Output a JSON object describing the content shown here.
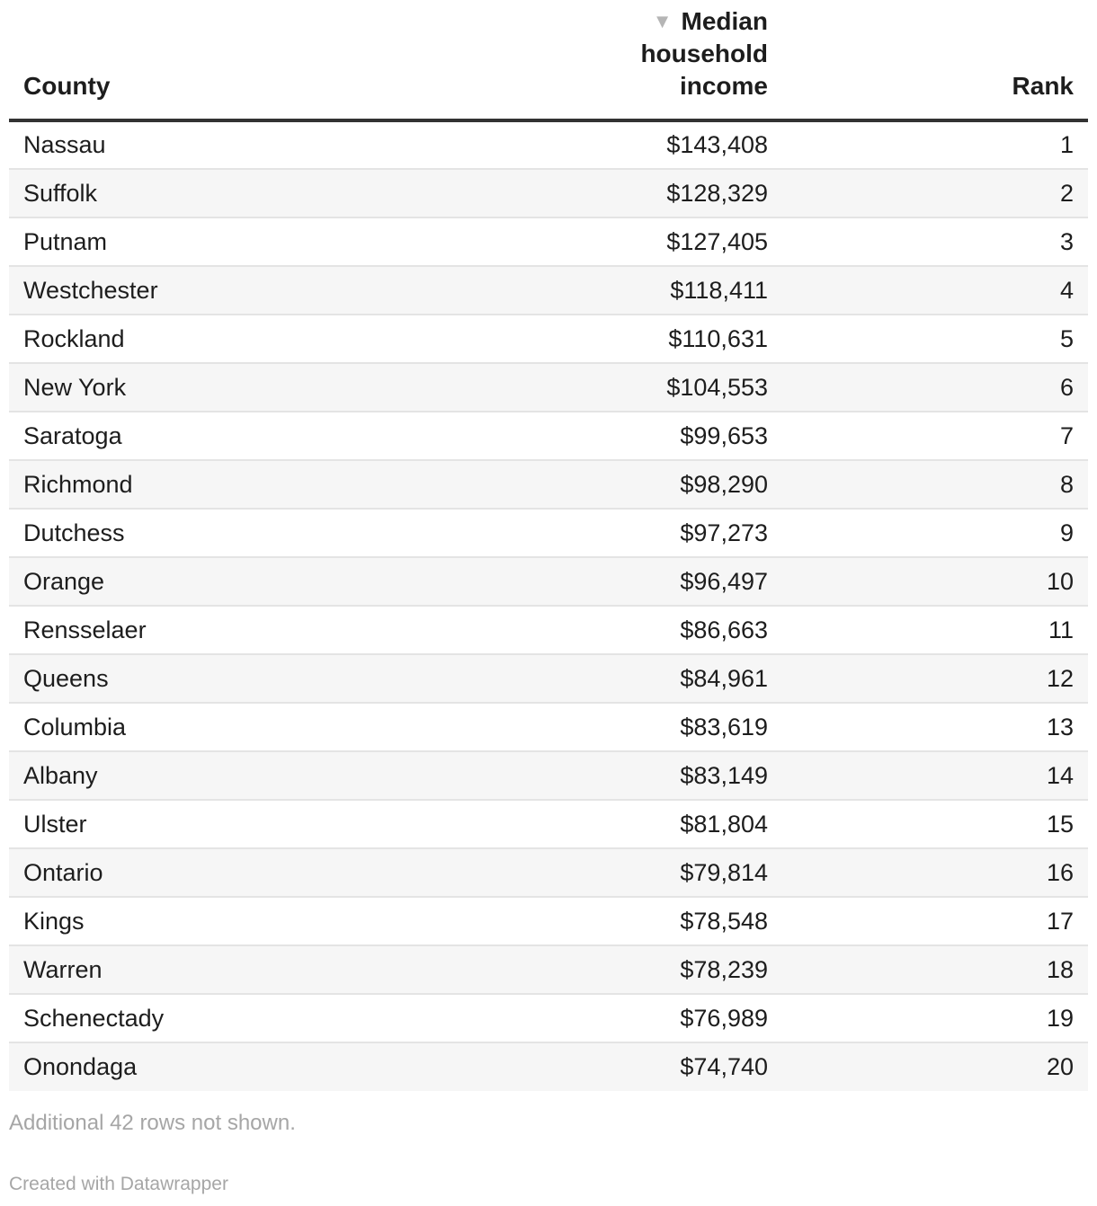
{
  "chart_data": {
    "type": "table",
    "columns": [
      "County",
      "Median household income",
      "Rank"
    ],
    "sort": {
      "column": "Median household income",
      "direction": "descending"
    },
    "rows": [
      {
        "county": "Nassau",
        "income": "$143,408",
        "rank": "1"
      },
      {
        "county": "Suffolk",
        "income": "$128,329",
        "rank": "2"
      },
      {
        "county": "Putnam",
        "income": "$127,405",
        "rank": "3"
      },
      {
        "county": "Westchester",
        "income": "$118,411",
        "rank": "4"
      },
      {
        "county": "Rockland",
        "income": "$110,631",
        "rank": "5"
      },
      {
        "county": "New York",
        "income": "$104,553",
        "rank": "6"
      },
      {
        "county": "Saratoga",
        "income": "$99,653",
        "rank": "7"
      },
      {
        "county": "Richmond",
        "income": "$98,290",
        "rank": "8"
      },
      {
        "county": "Dutchess",
        "income": "$97,273",
        "rank": "9"
      },
      {
        "county": "Orange",
        "income": "$96,497",
        "rank": "10"
      },
      {
        "county": "Rensselaer",
        "income": "$86,663",
        "rank": "11"
      },
      {
        "county": "Queens",
        "income": "$84,961",
        "rank": "12"
      },
      {
        "county": "Columbia",
        "income": "$83,619",
        "rank": "13"
      },
      {
        "county": "Albany",
        "income": "$83,149",
        "rank": "14"
      },
      {
        "county": "Ulster",
        "income": "$81,804",
        "rank": "15"
      },
      {
        "county": "Ontario",
        "income": "$79,814",
        "rank": "16"
      },
      {
        "county": "Kings",
        "income": "$78,548",
        "rank": "17"
      },
      {
        "county": "Warren",
        "income": "$78,239",
        "rank": "18"
      },
      {
        "county": "Schenectady",
        "income": "$76,989",
        "rank": "19"
      },
      {
        "county": "Onondaga",
        "income": "$74,740",
        "rank": "20"
      }
    ]
  },
  "header": {
    "county": "County",
    "income_line1": "Median household",
    "income_line2": "income",
    "rank": "Rank",
    "sort_arrow": "▼"
  },
  "notes": "Additional 42 rows not shown.",
  "credit": "Created with Datawrapper",
  "colors": {
    "text": "#1d1d1d",
    "zebra": "#f6f6f6",
    "divider": "#e4e4e4",
    "header_rule": "#333333",
    "muted": "#a6a6a6"
  }
}
